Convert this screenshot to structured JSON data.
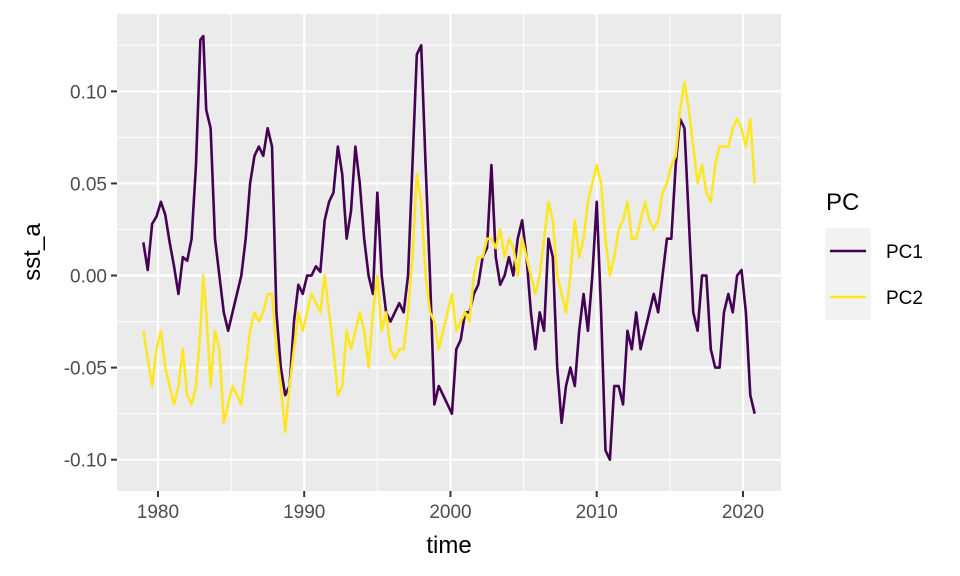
{
  "chart_data": {
    "type": "line",
    "xlabel": "time",
    "ylabel": "sst_a",
    "xlim": [
      1977.2,
      2022.6
    ],
    "ylim": [
      -0.117,
      0.142
    ],
    "x_ticks": [
      1980,
      1990,
      2000,
      2010,
      2020
    ],
    "x_tick_labels": [
      "1980",
      "1990",
      "2000",
      "2010",
      "2020"
    ],
    "y_ticks": [
      -0.1,
      -0.05,
      0.0,
      0.05,
      0.1
    ],
    "y_tick_labels": [
      "-0.10",
      "-0.05",
      "0.00",
      "0.05",
      "0.10"
    ],
    "grid": true,
    "panel_background": "#ebebeb",
    "legend": {
      "title": "PC",
      "placement": "right"
    },
    "series": [
      {
        "name": "PC1",
        "color": "#440154",
        "points": [
          [
            1979.0,
            0.018
          ],
          [
            1979.3,
            0.003
          ],
          [
            1979.6,
            0.028
          ],
          [
            1979.9,
            0.032
          ],
          [
            1980.2,
            0.04
          ],
          [
            1980.5,
            0.033
          ],
          [
            1980.8,
            0.018
          ],
          [
            1981.1,
            0.005
          ],
          [
            1981.4,
            -0.01
          ],
          [
            1981.7,
            0.01
          ],
          [
            1982.0,
            0.008
          ],
          [
            1982.3,
            0.02
          ],
          [
            1982.6,
            0.06
          ],
          [
            1982.9,
            0.128
          ],
          [
            1983.1,
            0.13
          ],
          [
            1983.3,
            0.09
          ],
          [
            1983.6,
            0.08
          ],
          [
            1983.9,
            0.02
          ],
          [
            1984.2,
            0.0
          ],
          [
            1984.5,
            -0.02
          ],
          [
            1984.8,
            -0.03
          ],
          [
            1985.1,
            -0.02
          ],
          [
            1985.4,
            -0.01
          ],
          [
            1985.7,
            0.0
          ],
          [
            1986.0,
            0.02
          ],
          [
            1986.3,
            0.05
          ],
          [
            1986.6,
            0.065
          ],
          [
            1986.9,
            0.07
          ],
          [
            1987.2,
            0.065
          ],
          [
            1987.5,
            0.08
          ],
          [
            1987.8,
            0.07
          ],
          [
            1988.1,
            -0.02
          ],
          [
            1988.4,
            -0.05
          ],
          [
            1988.7,
            -0.065
          ],
          [
            1989.0,
            -0.06
          ],
          [
            1989.3,
            -0.025
          ],
          [
            1989.6,
            -0.005
          ],
          [
            1989.9,
            -0.01
          ],
          [
            1990.2,
            0.0
          ],
          [
            1990.5,
            0.0
          ],
          [
            1990.8,
            0.005
          ],
          [
            1991.1,
            0.002
          ],
          [
            1991.4,
            0.03
          ],
          [
            1991.7,
            0.04
          ],
          [
            1992.0,
            0.045
          ],
          [
            1992.3,
            0.07
          ],
          [
            1992.6,
            0.055
          ],
          [
            1992.9,
            0.02
          ],
          [
            1993.2,
            0.035
          ],
          [
            1993.5,
            0.07
          ],
          [
            1993.8,
            0.05
          ],
          [
            1994.1,
            0.02
          ],
          [
            1994.4,
            0.0
          ],
          [
            1994.7,
            -0.01
          ],
          [
            1995.0,
            0.045
          ],
          [
            1995.3,
            0.0
          ],
          [
            1995.6,
            -0.02
          ],
          [
            1995.9,
            -0.025
          ],
          [
            1996.2,
            -0.02
          ],
          [
            1996.5,
            -0.015
          ],
          [
            1996.8,
            -0.02
          ],
          [
            1997.1,
            0.0
          ],
          [
            1997.4,
            0.06
          ],
          [
            1997.7,
            0.12
          ],
          [
            1998.0,
            0.125
          ],
          [
            1998.3,
            0.06
          ],
          [
            1998.6,
            0.0
          ],
          [
            1998.9,
            -0.07
          ],
          [
            1999.2,
            -0.06
          ],
          [
            1999.5,
            -0.065
          ],
          [
            1999.8,
            -0.07
          ],
          [
            2000.1,
            -0.075
          ],
          [
            2000.4,
            -0.04
          ],
          [
            2000.7,
            -0.035
          ],
          [
            2001.0,
            -0.02
          ],
          [
            2001.3,
            -0.02
          ],
          [
            2001.6,
            -0.01
          ],
          [
            2001.9,
            -0.005
          ],
          [
            2002.2,
            0.01
          ],
          [
            2002.5,
            0.015
          ],
          [
            2002.8,
            0.06
          ],
          [
            2003.1,
            0.01
          ],
          [
            2003.4,
            -0.005
          ],
          [
            2003.7,
            0.0
          ],
          [
            2004.0,
            0.01
          ],
          [
            2004.3,
            0.0
          ],
          [
            2004.6,
            0.02
          ],
          [
            2004.9,
            0.03
          ],
          [
            2005.2,
            0.01
          ],
          [
            2005.5,
            -0.02
          ],
          [
            2005.8,
            -0.04
          ],
          [
            2006.1,
            -0.02
          ],
          [
            2006.4,
            -0.03
          ],
          [
            2006.7,
            0.02
          ],
          [
            2007.0,
            0.01
          ],
          [
            2007.3,
            -0.05
          ],
          [
            2007.6,
            -0.08
          ],
          [
            2007.9,
            -0.06
          ],
          [
            2008.2,
            -0.05
          ],
          [
            2008.5,
            -0.06
          ],
          [
            2008.8,
            -0.03
          ],
          [
            2009.1,
            -0.01
          ],
          [
            2009.4,
            -0.03
          ],
          [
            2009.7,
            0.0
          ],
          [
            2010.0,
            0.04
          ],
          [
            2010.3,
            -0.02
          ],
          [
            2010.6,
            -0.095
          ],
          [
            2010.9,
            -0.1
          ],
          [
            2011.2,
            -0.06
          ],
          [
            2011.5,
            -0.06
          ],
          [
            2011.8,
            -0.07
          ],
          [
            2012.1,
            -0.03
          ],
          [
            2012.4,
            -0.04
          ],
          [
            2012.7,
            -0.02
          ],
          [
            2013.0,
            -0.04
          ],
          [
            2013.3,
            -0.03
          ],
          [
            2013.6,
            -0.02
          ],
          [
            2013.9,
            -0.01
          ],
          [
            2014.2,
            -0.02
          ],
          [
            2014.5,
            0.0
          ],
          [
            2014.8,
            0.02
          ],
          [
            2015.1,
            0.02
          ],
          [
            2015.4,
            0.06
          ],
          [
            2015.7,
            0.085
          ],
          [
            2016.0,
            0.08
          ],
          [
            2016.3,
            0.03
          ],
          [
            2016.6,
            -0.02
          ],
          [
            2016.9,
            -0.03
          ],
          [
            2017.2,
            0.0
          ],
          [
            2017.5,
            0.0
          ],
          [
            2017.8,
            -0.04
          ],
          [
            2018.1,
            -0.05
          ],
          [
            2018.4,
            -0.05
          ],
          [
            2018.7,
            -0.02
          ],
          [
            2019.0,
            -0.01
          ],
          [
            2019.3,
            -0.02
          ],
          [
            2019.6,
            0.0
          ],
          [
            2019.9,
            0.003
          ],
          [
            2020.2,
            -0.02
          ],
          [
            2020.5,
            -0.065
          ],
          [
            2020.8,
            -0.075
          ]
        ]
      },
      {
        "name": "PC2",
        "color": "#fde725",
        "points": [
          [
            1979.0,
            -0.03
          ],
          [
            1979.3,
            -0.045
          ],
          [
            1979.6,
            -0.06
          ],
          [
            1979.9,
            -0.04
          ],
          [
            1980.2,
            -0.03
          ],
          [
            1980.5,
            -0.05
          ],
          [
            1980.8,
            -0.06
          ],
          [
            1981.1,
            -0.07
          ],
          [
            1981.4,
            -0.06
          ],
          [
            1981.7,
            -0.04
          ],
          [
            1982.0,
            -0.065
          ],
          [
            1982.3,
            -0.07
          ],
          [
            1982.6,
            -0.06
          ],
          [
            1982.9,
            -0.03
          ],
          [
            1983.1,
            0.0
          ],
          [
            1983.3,
            -0.02
          ],
          [
            1983.6,
            -0.06
          ],
          [
            1983.9,
            -0.03
          ],
          [
            1984.2,
            -0.04
          ],
          [
            1984.5,
            -0.08
          ],
          [
            1984.8,
            -0.07
          ],
          [
            1985.1,
            -0.06
          ],
          [
            1985.4,
            -0.065
          ],
          [
            1985.7,
            -0.07
          ],
          [
            1986.0,
            -0.05
          ],
          [
            1986.3,
            -0.03
          ],
          [
            1986.6,
            -0.02
          ],
          [
            1986.9,
            -0.025
          ],
          [
            1987.2,
            -0.02
          ],
          [
            1987.5,
            -0.01
          ],
          [
            1987.8,
            -0.01
          ],
          [
            1988.1,
            -0.04
          ],
          [
            1988.4,
            -0.06
          ],
          [
            1988.7,
            -0.085
          ],
          [
            1989.0,
            -0.06
          ],
          [
            1989.3,
            -0.04
          ],
          [
            1989.6,
            -0.02
          ],
          [
            1989.9,
            -0.03
          ],
          [
            1990.2,
            -0.02
          ],
          [
            1990.5,
            -0.01
          ],
          [
            1990.8,
            -0.015
          ],
          [
            1991.1,
            -0.02
          ],
          [
            1991.4,
            0.0
          ],
          [
            1991.7,
            -0.02
          ],
          [
            1992.0,
            -0.04
          ],
          [
            1992.3,
            -0.065
          ],
          [
            1992.6,
            -0.06
          ],
          [
            1992.9,
            -0.03
          ],
          [
            1993.2,
            -0.04
          ],
          [
            1993.5,
            -0.03
          ],
          [
            1993.8,
            -0.02
          ],
          [
            1994.1,
            -0.03
          ],
          [
            1994.4,
            -0.05
          ],
          [
            1994.7,
            -0.02
          ],
          [
            1995.0,
            0.0
          ],
          [
            1995.3,
            -0.03
          ],
          [
            1995.6,
            -0.02
          ],
          [
            1995.9,
            -0.04
          ],
          [
            1996.2,
            -0.045
          ],
          [
            1996.5,
            -0.04
          ],
          [
            1996.8,
            -0.04
          ],
          [
            1997.1,
            -0.02
          ],
          [
            1997.4,
            0.01
          ],
          [
            1997.7,
            0.055
          ],
          [
            1998.0,
            0.04
          ],
          [
            1998.3,
            0.0
          ],
          [
            1998.6,
            -0.02
          ],
          [
            1998.9,
            -0.025
          ],
          [
            1999.2,
            -0.04
          ],
          [
            1999.5,
            -0.03
          ],
          [
            1999.8,
            -0.02
          ],
          [
            2000.1,
            -0.01
          ],
          [
            2000.4,
            -0.03
          ],
          [
            2000.7,
            -0.025
          ],
          [
            2001.0,
            -0.02
          ],
          [
            2001.3,
            -0.025
          ],
          [
            2001.6,
            0.0
          ],
          [
            2001.9,
            0.01
          ],
          [
            2002.2,
            0.01
          ],
          [
            2002.5,
            0.02
          ],
          [
            2002.8,
            0.02
          ],
          [
            2003.1,
            0.015
          ],
          [
            2003.4,
            0.025
          ],
          [
            2003.7,
            0.01
          ],
          [
            2004.0,
            0.02
          ],
          [
            2004.3,
            0.015
          ],
          [
            2004.6,
            0.0
          ],
          [
            2004.9,
            0.02
          ],
          [
            2005.2,
            0.01
          ],
          [
            2005.5,
            0.0
          ],
          [
            2005.8,
            -0.01
          ],
          [
            2006.1,
            0.0
          ],
          [
            2006.4,
            0.02
          ],
          [
            2006.7,
            0.04
          ],
          [
            2007.0,
            0.03
          ],
          [
            2007.3,
            0.0
          ],
          [
            2007.6,
            -0.01
          ],
          [
            2007.9,
            -0.02
          ],
          [
            2008.2,
            0.0
          ],
          [
            2008.5,
            0.03
          ],
          [
            2008.8,
            0.01
          ],
          [
            2009.1,
            0.02
          ],
          [
            2009.4,
            0.04
          ],
          [
            2009.7,
            0.05
          ],
          [
            2010.0,
            0.06
          ],
          [
            2010.3,
            0.05
          ],
          [
            2010.6,
            0.02
          ],
          [
            2010.9,
            0.0
          ],
          [
            2011.2,
            0.01
          ],
          [
            2011.5,
            0.025
          ],
          [
            2011.8,
            0.03
          ],
          [
            2012.1,
            0.04
          ],
          [
            2012.4,
            0.02
          ],
          [
            2012.7,
            0.02
          ],
          [
            2013.0,
            0.03
          ],
          [
            2013.3,
            0.04
          ],
          [
            2013.6,
            0.03
          ],
          [
            2013.9,
            0.025
          ],
          [
            2014.2,
            0.03
          ],
          [
            2014.5,
            0.045
          ],
          [
            2014.8,
            0.05
          ],
          [
            2015.1,
            0.06
          ],
          [
            2015.4,
            0.065
          ],
          [
            2015.7,
            0.09
          ],
          [
            2016.0,
            0.105
          ],
          [
            2016.3,
            0.09
          ],
          [
            2016.6,
            0.07
          ],
          [
            2016.9,
            0.05
          ],
          [
            2017.2,
            0.06
          ],
          [
            2017.5,
            0.045
          ],
          [
            2017.8,
            0.04
          ],
          [
            2018.1,
            0.06
          ],
          [
            2018.4,
            0.07
          ],
          [
            2018.7,
            0.07
          ],
          [
            2019.0,
            0.07
          ],
          [
            2019.3,
            0.08
          ],
          [
            2019.6,
            0.085
          ],
          [
            2019.9,
            0.08
          ],
          [
            2020.2,
            0.07
          ],
          [
            2020.5,
            0.085
          ],
          [
            2020.8,
            0.05
          ]
        ]
      }
    ]
  }
}
